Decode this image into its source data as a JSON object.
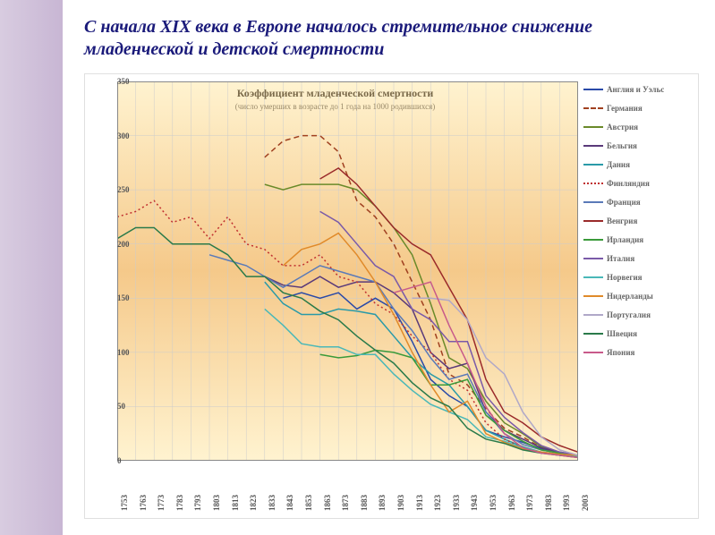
{
  "page_title": "С начала XIX века в Европе началось стремительное снижение младенческой и детской смертности",
  "chart": {
    "type": "line",
    "title": "Коэффициент младенческой смертности",
    "subtitle": "(число умерших в возрасте до 1 года на 1000 родившихся)",
    "title_fontsize": 12,
    "title_color": "#7a6a4a",
    "background_gradient_top": "#fff3d0",
    "background_gradient_mid": "#f5c98a",
    "background_gradient_bot": "#fff3d0",
    "grid_color": "#cccccc",
    "axis_label_color": "#555555",
    "axis_label_fontsize": 9,
    "ylim": [
      0,
      350
    ],
    "ytick_step": 50,
    "yticks": [
      0,
      50,
      100,
      150,
      200,
      250,
      300,
      350
    ],
    "xlim": [
      1753,
      2003
    ],
    "xtick_step": 10,
    "xticks": [
      1753,
      1763,
      1773,
      1783,
      1793,
      1803,
      1813,
      1823,
      1833,
      1843,
      1853,
      1863,
      1873,
      1883,
      1893,
      1903,
      1913,
      1923,
      1933,
      1943,
      1953,
      1963,
      1973,
      1983,
      1993,
      2003
    ],
    "line_width": 1.5,
    "legend_fontsize": 9,
    "series": [
      {
        "name": "Англия и Уэльс",
        "color": "#2a4aa8",
        "dash": "",
        "start": 1843,
        "data": [
          [
            1843,
            150
          ],
          [
            1853,
            155
          ],
          [
            1863,
            150
          ],
          [
            1873,
            155
          ],
          [
            1883,
            140
          ],
          [
            1893,
            150
          ],
          [
            1903,
            140
          ],
          [
            1913,
            110
          ],
          [
            1923,
            75
          ],
          [
            1933,
            60
          ],
          [
            1943,
            50
          ],
          [
            1953,
            28
          ],
          [
            1963,
            22
          ],
          [
            1973,
            17
          ],
          [
            1983,
            11
          ],
          [
            1993,
            7
          ],
          [
            2003,
            5
          ]
        ]
      },
      {
        "name": "Германия",
        "color": "#a04020",
        "dash": "6,4",
        "start": 1833,
        "data": [
          [
            1833,
            280
          ],
          [
            1843,
            295
          ],
          [
            1853,
            300
          ],
          [
            1863,
            300
          ],
          [
            1873,
            285
          ],
          [
            1883,
            240
          ],
          [
            1893,
            225
          ],
          [
            1903,
            200
          ],
          [
            1913,
            165
          ],
          [
            1923,
            130
          ],
          [
            1933,
            80
          ],
          [
            1943,
            70
          ],
          [
            1953,
            48
          ],
          [
            1963,
            30
          ],
          [
            1973,
            22
          ],
          [
            1983,
            12
          ],
          [
            1993,
            6
          ],
          [
            2003,
            4
          ]
        ]
      },
      {
        "name": "Австрия",
        "color": "#6a8a2a",
        "dash": "",
        "start": 1833,
        "data": [
          [
            1833,
            255
          ],
          [
            1843,
            250
          ],
          [
            1853,
            255
          ],
          [
            1863,
            255
          ],
          [
            1873,
            255
          ],
          [
            1883,
            250
          ],
          [
            1893,
            235
          ],
          [
            1903,
            215
          ],
          [
            1913,
            190
          ],
          [
            1923,
            145
          ],
          [
            1933,
            95
          ],
          [
            1943,
            85
          ],
          [
            1953,
            55
          ],
          [
            1963,
            35
          ],
          [
            1973,
            25
          ],
          [
            1983,
            13
          ],
          [
            1993,
            7
          ],
          [
            2003,
            5
          ]
        ]
      },
      {
        "name": "Бельгия",
        "color": "#5a3a7a",
        "dash": "",
        "start": 1833,
        "data": [
          [
            1833,
            170
          ],
          [
            1843,
            162
          ],
          [
            1853,
            160
          ],
          [
            1863,
            170
          ],
          [
            1873,
            160
          ],
          [
            1883,
            165
          ],
          [
            1893,
            165
          ],
          [
            1903,
            155
          ],
          [
            1913,
            140
          ],
          [
            1923,
            100
          ],
          [
            1933,
            85
          ],
          [
            1943,
            90
          ],
          [
            1953,
            45
          ],
          [
            1963,
            28
          ],
          [
            1973,
            20
          ],
          [
            1983,
            12
          ],
          [
            1993,
            8
          ],
          [
            2003,
            5
          ]
        ]
      },
      {
        "name": "Дания",
        "color": "#2a9aa8",
        "dash": "",
        "start": 1833,
        "data": [
          [
            1833,
            165
          ],
          [
            1843,
            145
          ],
          [
            1853,
            135
          ],
          [
            1863,
            135
          ],
          [
            1873,
            140
          ],
          [
            1883,
            138
          ],
          [
            1893,
            135
          ],
          [
            1903,
            115
          ],
          [
            1913,
            95
          ],
          [
            1923,
            80
          ],
          [
            1933,
            70
          ],
          [
            1943,
            50
          ],
          [
            1953,
            28
          ],
          [
            1963,
            20
          ],
          [
            1973,
            13
          ],
          [
            1983,
            8
          ],
          [
            1993,
            6
          ],
          [
            2003,
            4
          ]
        ]
      },
      {
        "name": "Финляндия",
        "color": "#c03030",
        "dash": "2,3",
        "start": 1753,
        "data": [
          [
            1753,
            225
          ],
          [
            1763,
            230
          ],
          [
            1773,
            240
          ],
          [
            1783,
            220
          ],
          [
            1793,
            225
          ],
          [
            1803,
            205
          ],
          [
            1813,
            225
          ],
          [
            1823,
            200
          ],
          [
            1833,
            195
          ],
          [
            1843,
            180
          ],
          [
            1853,
            180
          ],
          [
            1863,
            190
          ],
          [
            1873,
            170
          ],
          [
            1883,
            165
          ],
          [
            1893,
            145
          ],
          [
            1903,
            135
          ],
          [
            1913,
            115
          ],
          [
            1923,
            100
          ],
          [
            1933,
            75
          ],
          [
            1943,
            65
          ],
          [
            1953,
            35
          ],
          [
            1963,
            20
          ],
          [
            1973,
            12
          ],
          [
            1983,
            7
          ],
          [
            1993,
            5
          ],
          [
            2003,
            4
          ]
        ]
      },
      {
        "name": "Франция",
        "color": "#5a7ab8",
        "dash": "",
        "start": 1803,
        "data": [
          [
            1803,
            190
          ],
          [
            1813,
            185
          ],
          [
            1823,
            180
          ],
          [
            1833,
            170
          ],
          [
            1843,
            160
          ],
          [
            1853,
            170
          ],
          [
            1863,
            180
          ],
          [
            1873,
            175
          ],
          [
            1883,
            170
          ],
          [
            1893,
            165
          ],
          [
            1903,
            140
          ],
          [
            1913,
            120
          ],
          [
            1923,
            95
          ],
          [
            1933,
            75
          ],
          [
            1943,
            80
          ],
          [
            1953,
            45
          ],
          [
            1963,
            25
          ],
          [
            1973,
            15
          ],
          [
            1983,
            10
          ],
          [
            1993,
            7
          ],
          [
            2003,
            4
          ]
        ]
      },
      {
        "name": "Венгрия",
        "color": "#9a2a2a",
        "dash": "",
        "start": 1863,
        "data": [
          [
            1863,
            260
          ],
          [
            1873,
            270
          ],
          [
            1883,
            255
          ],
          [
            1893,
            235
          ],
          [
            1903,
            215
          ],
          [
            1913,
            200
          ],
          [
            1923,
            190
          ],
          [
            1933,
            160
          ],
          [
            1943,
            130
          ],
          [
            1953,
            75
          ],
          [
            1963,
            45
          ],
          [
            1973,
            35
          ],
          [
            1983,
            22
          ],
          [
            1993,
            14
          ],
          [
            2003,
            8
          ]
        ]
      },
      {
        "name": "Ирландия",
        "color": "#3a9a3a",
        "dash": "",
        "start": 1863,
        "data": [
          [
            1863,
            98
          ],
          [
            1873,
            95
          ],
          [
            1883,
            97
          ],
          [
            1893,
            102
          ],
          [
            1903,
            100
          ],
          [
            1913,
            95
          ],
          [
            1923,
            70
          ],
          [
            1933,
            70
          ],
          [
            1943,
            75
          ],
          [
            1953,
            42
          ],
          [
            1963,
            28
          ],
          [
            1973,
            18
          ],
          [
            1983,
            10
          ],
          [
            1993,
            7
          ],
          [
            2003,
            5
          ]
        ]
      },
      {
        "name": "Италия",
        "color": "#7a5aa8",
        "dash": "",
        "start": 1863,
        "data": [
          [
            1863,
            230
          ],
          [
            1873,
            220
          ],
          [
            1883,
            200
          ],
          [
            1893,
            180
          ],
          [
            1903,
            170
          ],
          [
            1913,
            140
          ],
          [
            1923,
            130
          ],
          [
            1933,
            110
          ],
          [
            1943,
            110
          ],
          [
            1953,
            60
          ],
          [
            1963,
            40
          ],
          [
            1973,
            26
          ],
          [
            1983,
            14
          ],
          [
            1993,
            8
          ],
          [
            2003,
            5
          ]
        ]
      },
      {
        "name": "Норвегия",
        "color": "#4ab8b8",
        "dash": "",
        "start": 1833,
        "data": [
          [
            1833,
            140
          ],
          [
            1843,
            125
          ],
          [
            1853,
            108
          ],
          [
            1863,
            105
          ],
          [
            1873,
            105
          ],
          [
            1883,
            98
          ],
          [
            1893,
            98
          ],
          [
            1903,
            80
          ],
          [
            1913,
            65
          ],
          [
            1923,
            52
          ],
          [
            1933,
            45
          ],
          [
            1943,
            38
          ],
          [
            1953,
            22
          ],
          [
            1963,
            18
          ],
          [
            1973,
            12
          ],
          [
            1983,
            8
          ],
          [
            1993,
            5
          ],
          [
            2003,
            4
          ]
        ]
      },
      {
        "name": "Нидерланды",
        "color": "#e08a2a",
        "dash": "",
        "start": 1843,
        "data": [
          [
            1843,
            180
          ],
          [
            1853,
            195
          ],
          [
            1863,
            200
          ],
          [
            1873,
            210
          ],
          [
            1883,
            190
          ],
          [
            1893,
            165
          ],
          [
            1903,
            135
          ],
          [
            1913,
            100
          ],
          [
            1923,
            70
          ],
          [
            1933,
            45
          ],
          [
            1943,
            55
          ],
          [
            1953,
            25
          ],
          [
            1963,
            17
          ],
          [
            1973,
            11
          ],
          [
            1983,
            8
          ],
          [
            1993,
            6
          ],
          [
            2003,
            5
          ]
        ]
      },
      {
        "name": "Португалия",
        "color": "#b0a8c8",
        "dash": "",
        "start": 1913,
        "data": [
          [
            1913,
            150
          ],
          [
            1923,
            150
          ],
          [
            1933,
            148
          ],
          [
            1943,
            130
          ],
          [
            1953,
            95
          ],
          [
            1963,
            80
          ],
          [
            1973,
            45
          ],
          [
            1983,
            22
          ],
          [
            1993,
            10
          ],
          [
            2003,
            5
          ]
        ]
      },
      {
        "name": "Швеция",
        "color": "#2a7a4a",
        "dash": "",
        "start": 1753,
        "data": [
          [
            1753,
            205
          ],
          [
            1763,
            215
          ],
          [
            1773,
            215
          ],
          [
            1783,
            200
          ],
          [
            1793,
            200
          ],
          [
            1803,
            200
          ],
          [
            1813,
            190
          ],
          [
            1823,
            170
          ],
          [
            1833,
            170
          ],
          [
            1843,
            155
          ],
          [
            1853,
            150
          ],
          [
            1863,
            138
          ],
          [
            1873,
            130
          ],
          [
            1883,
            115
          ],
          [
            1893,
            102
          ],
          [
            1903,
            90
          ],
          [
            1913,
            72
          ],
          [
            1923,
            58
          ],
          [
            1933,
            50
          ],
          [
            1943,
            30
          ],
          [
            1953,
            20
          ],
          [
            1963,
            16
          ],
          [
            1973,
            10
          ],
          [
            1983,
            7
          ],
          [
            1993,
            5
          ],
          [
            2003,
            3
          ]
        ]
      },
      {
        "name": "Япония",
        "color": "#c85a8a",
        "dash": "",
        "start": 1903,
        "data": [
          [
            1903,
            155
          ],
          [
            1913,
            160
          ],
          [
            1923,
            165
          ],
          [
            1933,
            125
          ],
          [
            1943,
            90
          ],
          [
            1953,
            50
          ],
          [
            1963,
            25
          ],
          [
            1973,
            12
          ],
          [
            1983,
            7
          ],
          [
            1993,
            5
          ],
          [
            2003,
            3
          ]
        ]
      }
    ]
  }
}
